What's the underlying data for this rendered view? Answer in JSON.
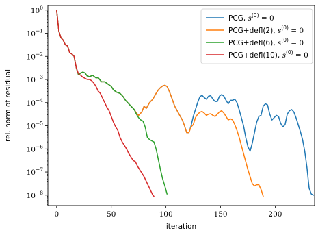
{
  "chart_data": {
    "type": "line",
    "xlabel": "iteration",
    "ylabel": "rel. norm of residual",
    "xlim": [
      -8,
      236
    ],
    "ylim_exp": [
      -8.45,
      0.2
    ],
    "y_scale": "log",
    "x_ticks": [
      0,
      50,
      100,
      150,
      200
    ],
    "y_ticks": [
      {
        "exp": 0,
        "label": "10^0",
        "base": "10",
        "sup": "0"
      },
      {
        "exp": -1,
        "label": "10^-1",
        "base": "10",
        "sup": "−1"
      },
      {
        "exp": -2,
        "label": "10^-2",
        "base": "10",
        "sup": "−2"
      },
      {
        "exp": -3,
        "label": "10^-3",
        "base": "10",
        "sup": "−3"
      },
      {
        "exp": -4,
        "label": "10^-4",
        "base": "10",
        "sup": "−4"
      },
      {
        "exp": -5,
        "label": "10^-5",
        "base": "10",
        "sup": "−5"
      },
      {
        "exp": -6,
        "label": "10^-6",
        "base": "10",
        "sup": "−6"
      },
      {
        "exp": -7,
        "label": "10^-7",
        "base": "10",
        "sup": "−7"
      },
      {
        "exp": -8,
        "label": "10^-8",
        "base": "10",
        "sup": "−8"
      }
    ],
    "grid": false,
    "legend_position": "top-right",
    "series": [
      {
        "name": "PCG, s(0) = 0",
        "name_main": "PCG, ",
        "name_math": "s",
        "name_sup": "(0)",
        "name_tail": " = 0",
        "color": "#1f77b4",
        "points": [
          [
            0,
            0
          ],
          [
            2,
            -0.9
          ],
          [
            4,
            -1.2
          ],
          [
            6,
            -1.3
          ],
          [
            8,
            -1.5
          ],
          [
            10,
            -1.55
          ],
          [
            12,
            -1.85
          ],
          [
            14,
            -1.9
          ],
          [
            16,
            -2.0
          ],
          [
            18,
            -2.5
          ],
          [
            20,
            -2.8
          ],
          [
            22,
            -2.72
          ],
          [
            24,
            -2.68
          ],
          [
            26,
            -2.72
          ],
          [
            28,
            -2.85
          ],
          [
            30,
            -2.88
          ],
          [
            33,
            -2.82
          ],
          [
            36,
            -2.93
          ],
          [
            38,
            -2.92
          ],
          [
            41,
            -3.1
          ],
          [
            44,
            -3.1
          ],
          [
            47,
            -3.2
          ],
          [
            50,
            -3.3
          ],
          [
            52,
            -3.45
          ],
          [
            55,
            -3.55
          ],
          [
            58,
            -3.6
          ],
          [
            61,
            -3.75
          ],
          [
            63,
            -3.9
          ],
          [
            66,
            -4.05
          ],
          [
            68,
            -4.15
          ],
          [
            71,
            -4.3
          ],
          [
            73,
            -4.45
          ],
          [
            75,
            -4.55
          ],
          [
            78,
            -4.4
          ],
          [
            80,
            -4.15
          ],
          [
            82,
            -4.25
          ],
          [
            85,
            -4.0
          ],
          [
            88,
            -3.85
          ],
          [
            91,
            -3.6
          ],
          [
            93,
            -3.45
          ],
          [
            95,
            -3.35
          ],
          [
            97,
            -3.28
          ],
          [
            99,
            -3.25
          ],
          [
            101,
            -3.3
          ],
          [
            103,
            -3.5
          ],
          [
            105,
            -3.75
          ],
          [
            108,
            -4.15
          ],
          [
            112,
            -4.5
          ],
          [
            115,
            -4.75
          ],
          [
            117,
            -5.0
          ],
          [
            119,
            -5.3
          ],
          [
            121,
            -5.3
          ],
          [
            123,
            -5.0
          ],
          [
            125,
            -4.6
          ],
          [
            127,
            -4.3
          ],
          [
            129,
            -4.0
          ],
          [
            131,
            -3.75
          ],
          [
            133,
            -3.68
          ],
          [
            135,
            -3.78
          ],
          [
            137,
            -3.85
          ],
          [
            139,
            -3.72
          ],
          [
            141,
            -3.7
          ],
          [
            143,
            -3.85
          ],
          [
            145,
            -3.95
          ],
          [
            147,
            -3.95
          ],
          [
            149,
            -3.72
          ],
          [
            151,
            -3.65
          ],
          [
            153,
            -3.72
          ],
          [
            155,
            -3.9
          ],
          [
            157,
            -4.05
          ],
          [
            159,
            -3.9
          ],
          [
            161,
            -3.9
          ],
          [
            163,
            -3.85
          ],
          [
            165,
            -4.0
          ],
          [
            167,
            -4.3
          ],
          [
            169,
            -4.65
          ],
          [
            171,
            -5.0
          ],
          [
            173,
            -5.5
          ],
          [
            175,
            -5.9
          ],
          [
            177,
            -6.1
          ],
          [
            179,
            -5.75
          ],
          [
            181,
            -5.3
          ],
          [
            183,
            -4.85
          ],
          [
            185,
            -4.6
          ],
          [
            187,
            -4.55
          ],
          [
            189,
            -4.15
          ],
          [
            191,
            -4.05
          ],
          [
            193,
            -4.1
          ],
          [
            195,
            -4.5
          ],
          [
            197,
            -4.75
          ],
          [
            199,
            -4.65
          ],
          [
            201,
            -4.55
          ],
          [
            203,
            -4.6
          ],
          [
            205,
            -4.9
          ],
          [
            207,
            -5.05
          ],
          [
            209,
            -4.95
          ],
          [
            211,
            -4.5
          ],
          [
            213,
            -4.35
          ],
          [
            215,
            -4.3
          ],
          [
            217,
            -4.4
          ],
          [
            219,
            -4.65
          ],
          [
            221,
            -4.95
          ],
          [
            223,
            -5.25
          ],
          [
            225,
            -5.6
          ],
          [
            227,
            -6.1
          ],
          [
            229,
            -6.8
          ],
          [
            231,
            -7.7
          ],
          [
            233,
            -7.95
          ],
          [
            235,
            -8.0
          ]
        ]
      },
      {
        "name": "PCG+defl(2), s(0) = 0",
        "name_main": "PCG+defl(2), ",
        "name_math": "s",
        "name_sup": "(0)",
        "name_tail": " = 0",
        "color": "#ff7f0e",
        "points": [
          [
            0,
            0
          ],
          [
            2,
            -0.9
          ],
          [
            4,
            -1.2
          ],
          [
            6,
            -1.3
          ],
          [
            8,
            -1.5
          ],
          [
            10,
            -1.55
          ],
          [
            12,
            -1.85
          ],
          [
            14,
            -1.9
          ],
          [
            16,
            -2.0
          ],
          [
            18,
            -2.5
          ],
          [
            20,
            -2.8
          ],
          [
            22,
            -2.72
          ],
          [
            24,
            -2.68
          ],
          [
            26,
            -2.72
          ],
          [
            28,
            -2.85
          ],
          [
            30,
            -2.88
          ],
          [
            33,
            -2.82
          ],
          [
            36,
            -2.93
          ],
          [
            38,
            -2.92
          ],
          [
            41,
            -3.1
          ],
          [
            44,
            -3.1
          ],
          [
            47,
            -3.2
          ],
          [
            50,
            -3.3
          ],
          [
            52,
            -3.45
          ],
          [
            55,
            -3.55
          ],
          [
            58,
            -3.6
          ],
          [
            61,
            -3.75
          ],
          [
            63,
            -3.9
          ],
          [
            66,
            -4.05
          ],
          [
            68,
            -4.15
          ],
          [
            71,
            -4.3
          ],
          [
            73,
            -4.45
          ],
          [
            75,
            -4.55
          ],
          [
            78,
            -4.4
          ],
          [
            80,
            -4.15
          ],
          [
            82,
            -4.25
          ],
          [
            85,
            -4.0
          ],
          [
            88,
            -3.85
          ],
          [
            91,
            -3.6
          ],
          [
            93,
            -3.45
          ],
          [
            95,
            -3.35
          ],
          [
            97,
            -3.28
          ],
          [
            99,
            -3.25
          ],
          [
            101,
            -3.3
          ],
          [
            103,
            -3.5
          ],
          [
            105,
            -3.75
          ],
          [
            108,
            -4.15
          ],
          [
            112,
            -4.5
          ],
          [
            115,
            -4.75
          ],
          [
            117,
            -5.0
          ],
          [
            119,
            -5.3
          ],
          [
            121,
            -5.3
          ],
          [
            123,
            -5.05
          ],
          [
            125,
            -4.95
          ],
          [
            127,
            -4.65
          ],
          [
            129,
            -4.5
          ],
          [
            131,
            -4.42
          ],
          [
            133,
            -4.38
          ],
          [
            135,
            -4.45
          ],
          [
            137,
            -4.55
          ],
          [
            139,
            -4.5
          ],
          [
            141,
            -4.48
          ],
          [
            143,
            -4.55
          ],
          [
            145,
            -4.6
          ],
          [
            147,
            -4.5
          ],
          [
            149,
            -4.4
          ],
          [
            151,
            -4.35
          ],
          [
            153,
            -4.45
          ],
          [
            155,
            -4.6
          ],
          [
            157,
            -4.75
          ],
          [
            159,
            -4.7
          ],
          [
            161,
            -4.75
          ],
          [
            163,
            -4.95
          ],
          [
            165,
            -5.2
          ],
          [
            167,
            -5.5
          ],
          [
            169,
            -5.85
          ],
          [
            171,
            -6.2
          ],
          [
            173,
            -6.55
          ],
          [
            175,
            -6.9
          ],
          [
            177,
            -7.2
          ],
          [
            179,
            -7.5
          ],
          [
            181,
            -7.6
          ],
          [
            183,
            -7.55
          ],
          [
            185,
            -7.55
          ],
          [
            187,
            -7.75
          ],
          [
            189,
            -8.05
          ]
        ]
      },
      {
        "name": "PCG+defl(6), s(0) = 0",
        "name_main": "PCG+defl(6), ",
        "name_math": "s",
        "name_sup": "(0)",
        "name_tail": " = 0",
        "color": "#2ca02c",
        "points": [
          [
            0,
            0
          ],
          [
            2,
            -0.9
          ],
          [
            4,
            -1.2
          ],
          [
            6,
            -1.3
          ],
          [
            8,
            -1.5
          ],
          [
            10,
            -1.55
          ],
          [
            12,
            -1.85
          ],
          [
            14,
            -1.9
          ],
          [
            16,
            -2.0
          ],
          [
            18,
            -2.5
          ],
          [
            20,
            -2.8
          ],
          [
            22,
            -2.72
          ],
          [
            24,
            -2.68
          ],
          [
            26,
            -2.72
          ],
          [
            28,
            -2.85
          ],
          [
            30,
            -2.88
          ],
          [
            33,
            -2.82
          ],
          [
            36,
            -2.93
          ],
          [
            38,
            -2.92
          ],
          [
            41,
            -3.1
          ],
          [
            44,
            -3.1
          ],
          [
            47,
            -3.2
          ],
          [
            50,
            -3.3
          ],
          [
            52,
            -3.45
          ],
          [
            55,
            -3.55
          ],
          [
            58,
            -3.6
          ],
          [
            61,
            -3.75
          ],
          [
            63,
            -3.9
          ],
          [
            66,
            -4.05
          ],
          [
            68,
            -4.15
          ],
          [
            71,
            -4.3
          ],
          [
            73,
            -4.5
          ],
          [
            75,
            -4.65
          ],
          [
            77,
            -4.75
          ],
          [
            79,
            -4.8
          ],
          [
            81,
            -5.05
          ],
          [
            83,
            -5.5
          ],
          [
            85,
            -5.6
          ],
          [
            87,
            -5.65
          ],
          [
            89,
            -5.7
          ],
          [
            91,
            -6.0
          ],
          [
            93,
            -6.45
          ],
          [
            95,
            -6.9
          ],
          [
            97,
            -7.3
          ],
          [
            99,
            -7.6
          ],
          [
            101,
            -7.95
          ]
        ]
      },
      {
        "name": "PCG+defl(10), s(0) = 0",
        "name_main": "PCG+defl(10), ",
        "name_math": "s",
        "name_sup": "(0)",
        "name_tail": " = 0",
        "color": "#d62728",
        "points": [
          [
            0,
            0
          ],
          [
            2,
            -0.9
          ],
          [
            4,
            -1.2
          ],
          [
            6,
            -1.3
          ],
          [
            8,
            -1.5
          ],
          [
            10,
            -1.55
          ],
          [
            12,
            -1.85
          ],
          [
            14,
            -1.9
          ],
          [
            16,
            -2.0
          ],
          [
            18,
            -2.5
          ],
          [
            20,
            -2.75
          ],
          [
            22,
            -2.82
          ],
          [
            24,
            -2.9
          ],
          [
            26,
            -2.95
          ],
          [
            28,
            -3.0
          ],
          [
            30,
            -3.0
          ],
          [
            32,
            -3.05
          ],
          [
            34,
            -3.15
          ],
          [
            36,
            -3.3
          ],
          [
            38,
            -3.5
          ],
          [
            40,
            -3.6
          ],
          [
            42,
            -3.8
          ],
          [
            44,
            -4.0
          ],
          [
            46,
            -4.2
          ],
          [
            48,
            -4.35
          ],
          [
            50,
            -4.6
          ],
          [
            52,
            -4.85
          ],
          [
            54,
            -5.05
          ],
          [
            56,
            -5.2
          ],
          [
            58,
            -5.5
          ],
          [
            60,
            -5.7
          ],
          [
            62,
            -5.85
          ],
          [
            64,
            -6.0
          ],
          [
            66,
            -6.2
          ],
          [
            68,
            -6.35
          ],
          [
            70,
            -6.5
          ],
          [
            72,
            -6.55
          ],
          [
            74,
            -6.75
          ],
          [
            76,
            -6.9
          ],
          [
            78,
            -7.05
          ],
          [
            80,
            -7.2
          ],
          [
            82,
            -7.4
          ],
          [
            84,
            -7.6
          ],
          [
            86,
            -7.8
          ],
          [
            88,
            -8.0
          ],
          [
            89,
            -8.05
          ]
        ]
      }
    ]
  }
}
